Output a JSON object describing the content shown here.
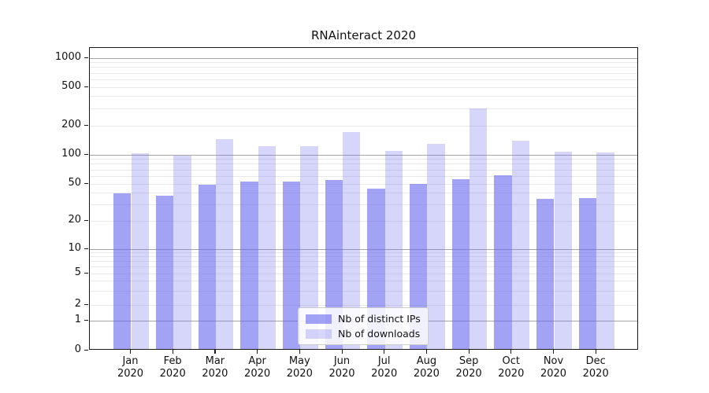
{
  "title": "RNAinteract 2020",
  "chart_data": {
    "type": "bar",
    "title": "RNAinteract 2020",
    "categories": [
      "Jan",
      "Feb",
      "Mar",
      "Apr",
      "May",
      "Jun",
      "Jul",
      "Aug",
      "Sep",
      "Oct",
      "Nov",
      "Dec"
    ],
    "category_year": "2020",
    "series": [
      {
        "name": "Nb of distinct IPs",
        "fill": "rgba(102,102,238,0.60)",
        "values": [
          38,
          36,
          47,
          51,
          51,
          53,
          43,
          48,
          54,
          59,
          33,
          34
        ]
      },
      {
        "name": "Nb of downloads",
        "fill": "rgba(102,102,238,0.27)",
        "values": [
          100,
          95,
          140,
          118,
          118,
          165,
          105,
          125,
          290,
          135,
          104,
          102
        ]
      }
    ],
    "y_ticks": [
      0,
      1,
      2,
      5,
      10,
      20,
      50,
      100,
      200,
      500,
      1000
    ],
    "y_scale": "symlog",
    "ylim": [
      0,
      1000
    ],
    "grid": true,
    "legend_position": "lower center",
    "colors": {
      "bar_base": "#6666ee",
      "grid_major": "#a6a6a6",
      "grid_minor": "#e9e9e9",
      "axis": "#1a1a1a",
      "background": "#ffffff"
    }
  }
}
